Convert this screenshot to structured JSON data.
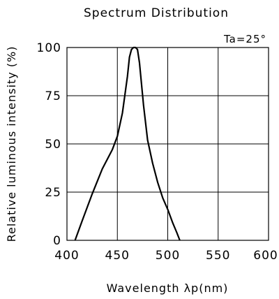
{
  "chart_data": {
    "type": "line",
    "title": "Spectrum Distribution",
    "annotation": "Ta=25°",
    "xlabel": "Wavelength λp(nm)",
    "ylabel": "Relative luminous intensity (%)",
    "xlim": [
      400,
      600
    ],
    "ylim": [
      0,
      100
    ],
    "xticks": [
      "400",
      "450",
      "500",
      "550",
      "600"
    ],
    "yticks": [
      "0",
      "25",
      "50",
      "75",
      "100"
    ],
    "grid": true,
    "legend": "none",
    "line_color": "#000000",
    "series": [
      {
        "x": [
          408,
          415,
          425,
          435,
          445,
          450,
          455,
          460,
          462,
          464,
          466,
          468,
          470,
          472,
          476,
          480,
          485,
          490,
          495,
          500,
          505,
          509,
          512
        ],
        "y": [
          0,
          10,
          24,
          37,
          47,
          54,
          66,
          85,
          95,
          99,
          100,
          100,
          99,
          92,
          70,
          52,
          40,
          30,
          22,
          16,
          9,
          4,
          0
        ]
      }
    ]
  }
}
